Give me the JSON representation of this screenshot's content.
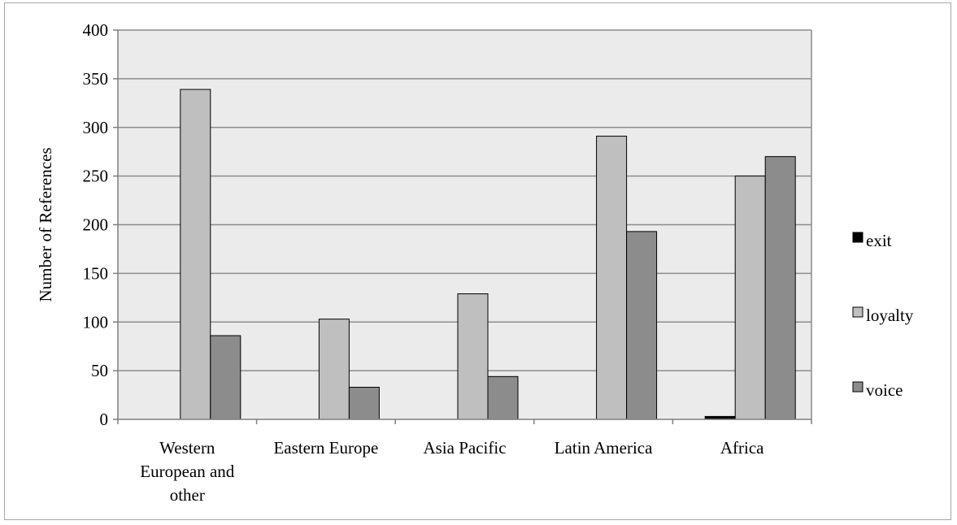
{
  "chart_data": {
    "type": "bar",
    "title": "",
    "xlabel": "",
    "ylabel": "Number of References",
    "ylim": [
      0,
      400
    ],
    "yticks": [
      0,
      50,
      100,
      150,
      200,
      250,
      300,
      350,
      400
    ],
    "grid": true,
    "legend_position": "right",
    "categories": [
      "Western European and other",
      "Eastern Europe",
      "Asia Pacific",
      "Latin America",
      "Africa"
    ],
    "category_label_lines": [
      [
        "Western",
        "European and",
        "other"
      ],
      [
        "Eastern Europe"
      ],
      [
        "Asia Pacific"
      ],
      [
        "Latin America"
      ],
      [
        "Africa"
      ]
    ],
    "series": [
      {
        "name": "exit",
        "values": [
          0,
          0,
          0,
          0,
          3
        ],
        "color": "#000000"
      },
      {
        "name": "loyalty",
        "values": [
          339,
          103,
          129,
          291,
          250
        ],
        "color": "#bfbfbf"
      },
      {
        "name": "voice",
        "values": [
          86,
          33,
          44,
          193,
          270
        ],
        "color": "#8c8c8c"
      }
    ],
    "plot_background": "#ebebeb",
    "gridline_color": "#8c8c8c"
  }
}
